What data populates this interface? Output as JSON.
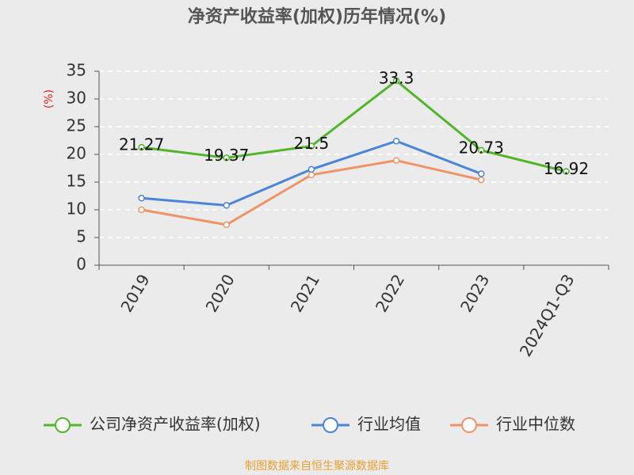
{
  "chart_data": {
    "type": "line",
    "title": "净资产收益率(加权)历年情况(%)",
    "y_label": "(%)",
    "categories": [
      "2019",
      "2020",
      "2021",
      "2022",
      "2023",
      "2024Q1-Q3"
    ],
    "series": [
      {
        "name": "公司净资产收益率(加权)",
        "color": "#52b52a",
        "values": [
          21.27,
          19.37,
          21.5,
          33.3,
          20.73,
          16.92
        ],
        "data_labels": true
      },
      {
        "name": "行业均值",
        "color": "#4a86d8",
        "values": [
          12.1,
          10.8,
          17.3,
          22.4,
          16.5,
          null
        ]
      },
      {
        "name": "行业中位数",
        "color": "#ef9466",
        "values": [
          10.0,
          7.3,
          16.3,
          18.9,
          15.4,
          null
        ]
      }
    ],
    "ylim": [
      0,
      35
    ],
    "yticks": [
      0,
      5,
      10,
      15,
      20,
      25,
      30,
      35
    ],
    "grid": true,
    "footer": "制图数据来自恒生聚源数据库"
  }
}
